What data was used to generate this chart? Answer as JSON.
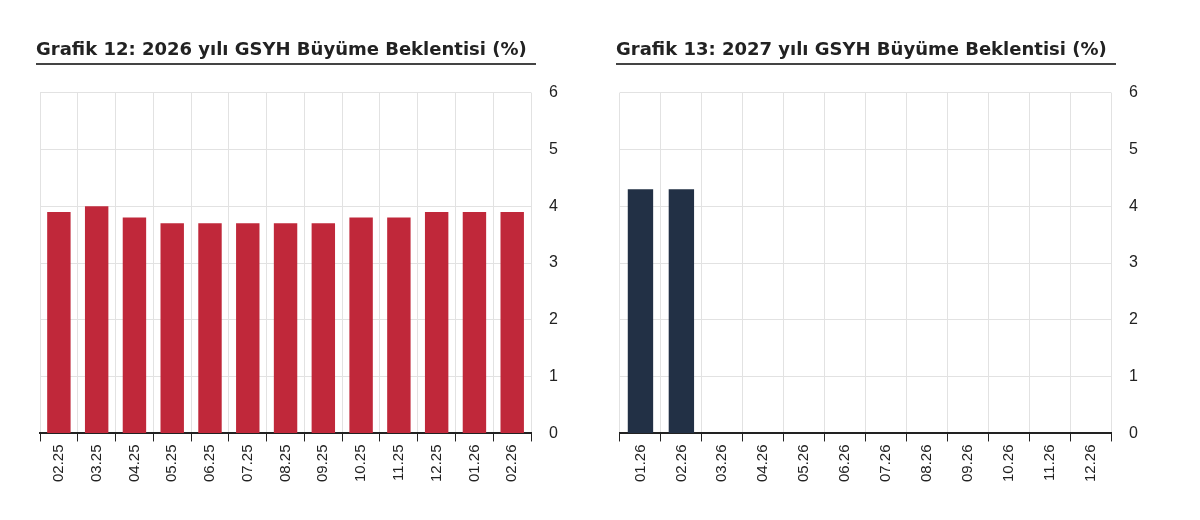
{
  "chart_data": [
    {
      "type": "bar",
      "title": "Grafik 12: 2026 yılı GSYH Büyüme Beklentisi (%)",
      "categories": [
        "02.25",
        "03.25",
        "04.25",
        "05.25",
        "06.25",
        "07.25",
        "08.25",
        "09.25",
        "10.25",
        "11.25",
        "12.25",
        "01.26",
        "02.26"
      ],
      "values": [
        3.9,
        4.0,
        3.8,
        3.7,
        3.7,
        3.7,
        3.7,
        3.7,
        3.8,
        3.8,
        3.9,
        3.9,
        3.9
      ],
      "color": "#c0283a",
      "ylim": [
        0,
        6
      ],
      "yticks": [
        0,
        1,
        2,
        3,
        4,
        5,
        6
      ],
      "grid": true,
      "legend": false
    },
    {
      "type": "bar",
      "title": "Grafik 13: 2027 yılı GSYH Büyüme Beklentisi (%)",
      "categories": [
        "01.26",
        "02.26",
        "03.26",
        "04.26",
        "05.26",
        "06.26",
        "07.26",
        "08.26",
        "09.26",
        "10.26",
        "11.26",
        "12.26"
      ],
      "values": [
        4.3,
        4.3,
        null,
        null,
        null,
        null,
        null,
        null,
        null,
        null,
        null,
        null
      ],
      "color": "#223045",
      "ylim": [
        0,
        6
      ],
      "yticks": [
        0,
        1,
        2,
        3,
        4,
        5,
        6
      ],
      "grid": true,
      "legend": false
    }
  ]
}
